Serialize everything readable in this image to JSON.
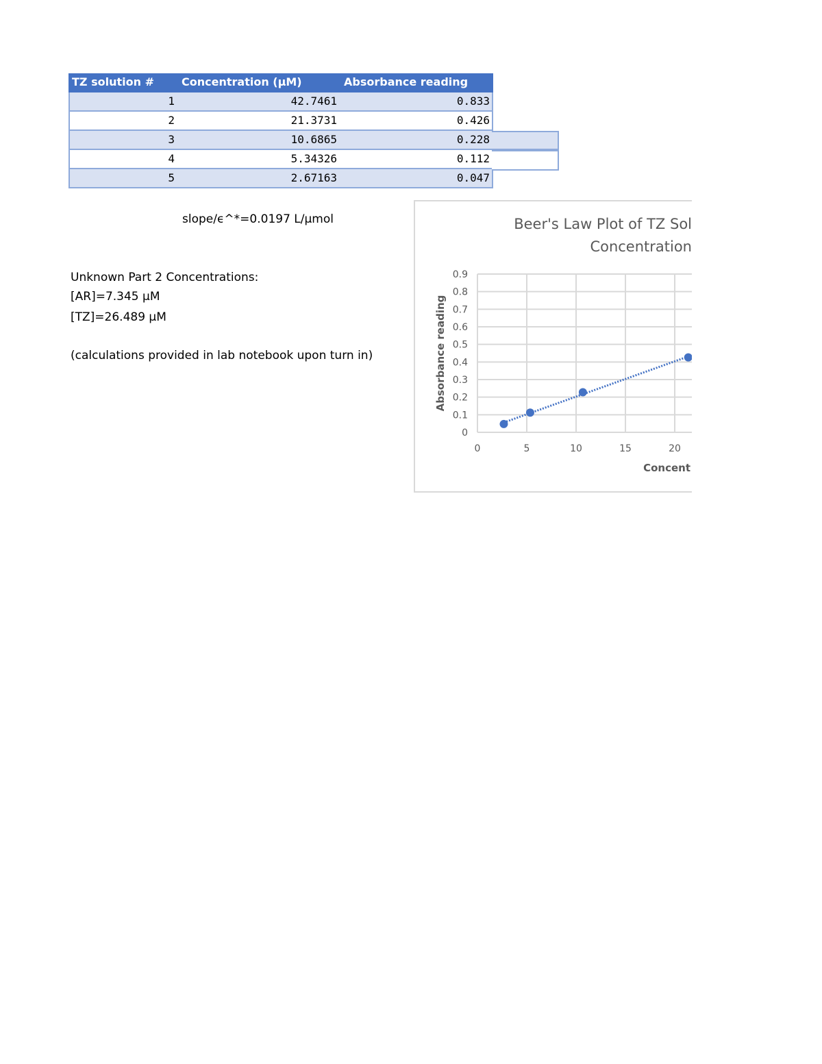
{
  "table": {
    "header": [
      "TZ solution #",
      "Concentration (µM)",
      "Absorbance reading"
    ],
    "rows": [
      [
        "1",
        "42.7461",
        "0.833"
      ],
      [
        "2",
        "21.3731",
        "0.426"
      ],
      [
        "3",
        "10.6865",
        "0.228"
      ],
      [
        "4",
        "5.34326",
        "0.112"
      ],
      [
        "5",
        "2.67163",
        "0.047"
      ]
    ]
  },
  "notes": {
    "slope": "slope/ϵ^*=0.0197 L/µmol",
    "heading": "Unknown Part 2 Concentrations:",
    "lines": [
      "[AR]=7.345 µM",
      "[TZ]=26.489 µM"
    ],
    "footnote": "(calculations provided in lab notebook upon turn in)"
  },
  "chart_data": {
    "type": "scatter",
    "title": [
      "Beer's Law Plot of TZ Sol",
      "Concentration"
    ],
    "x_label": "Concent",
    "y_label": "Absorbance reading",
    "x": [
      2.67163,
      5.34326,
      10.6865,
      21.3731
    ],
    "values": [
      0.047,
      0.112,
      0.228,
      0.426
    ],
    "color": "#4472c4",
    "trendline": true,
    "xlim": [
      0,
      21.7
    ],
    "xticks": [
      0,
      5,
      10,
      15,
      20
    ],
    "ylim": [
      0,
      0.9
    ],
    "yticks": [
      0,
      0.1,
      0.2,
      0.3,
      0.4,
      0.5,
      0.6,
      0.7,
      0.8,
      0.9
    ],
    "grid": true
  }
}
